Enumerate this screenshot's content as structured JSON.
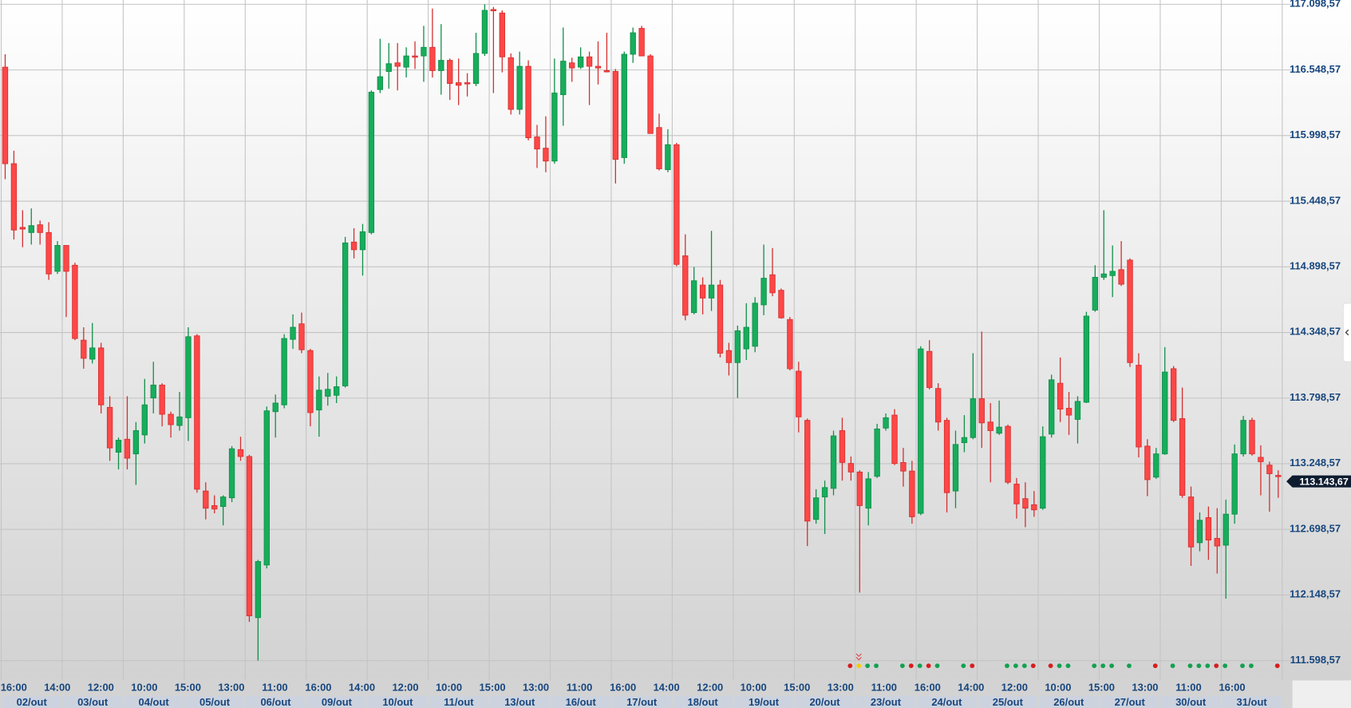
{
  "chart_data": {
    "type": "candlestick",
    "title": "",
    "ylim": [
      111598.57,
      117098.57
    ],
    "grid": true,
    "y_ticks": [
      "117.098,57",
      "116.548,57",
      "115.998,57",
      "115.448,57",
      "114.898,57",
      "114.348,57",
      "113.798,57",
      "113.248,57",
      "112.698,57",
      "112.148,57",
      "111.598,57"
    ],
    "y_tick_values": [
      117098.57,
      116548.57,
      115998.57,
      115448.57,
      114898.57,
      114348.57,
      113798.57,
      113248.57,
      112698.57,
      112148.57,
      111598.57
    ],
    "x_time_labels": [
      "16:00",
      "14:00",
      "12:00",
      "10:00",
      "15:00",
      "13:00",
      "11:00",
      "16:00",
      "14:00",
      "12:00",
      "10:00",
      "15:00",
      "13:00",
      "11:00",
      "16:00",
      "14:00",
      "12:00",
      "10:00",
      "15:00",
      "13:00",
      "11:00",
      "16:00",
      "14:00",
      "12:00",
      "10:00",
      "15:00",
      "13:00",
      "11:00",
      "16:00"
    ],
    "x_date_labels": [
      "02/out",
      "03/out",
      "04/out",
      "05/out",
      "06/out",
      "09/out",
      "10/out",
      "11/out",
      "13/out",
      "16/out",
      "17/out",
      "18/out",
      "19/out",
      "20/out",
      "23/out",
      "24/out",
      "25/out",
      "26/out",
      "27/out",
      "30/out",
      "31/out"
    ],
    "last_price": "113.143,67",
    "last_price_value": 113143.67,
    "colors": {
      "up": "#17ad5c",
      "up_border": "#0f8f48",
      "down": "#ff4747",
      "down_border": "#d42f2f",
      "axis_text": "#17467e",
      "price_tag": "#0e1c30",
      "signal_buy": "#12a150",
      "signal_sell": "#d91c1c",
      "signal_neutral": "#f2cc0c"
    },
    "candles_ohlc": [
      [
        116572,
        116680,
        115633,
        115763
      ],
      [
        115763,
        115872,
        115128,
        115207
      ],
      [
        115229,
        115373,
        115063,
        115215
      ],
      [
        115186,
        115388,
        115085,
        115244
      ],
      [
        115251,
        115287,
        115085,
        115186
      ],
      [
        115186,
        115273,
        114789,
        114839
      ],
      [
        114861,
        115114,
        114839,
        115078
      ],
      [
        115078,
        115078,
        114478,
        114861
      ],
      [
        114912,
        114933,
        114284,
        114298
      ],
      [
        114284,
        114392,
        114045,
        114132
      ],
      [
        114125,
        114428,
        114089,
        114219
      ],
      [
        114219,
        114262,
        113670,
        113742
      ],
      [
        113721,
        113814,
        113273,
        113381
      ],
      [
        113345,
        113468,
        113201,
        113446
      ],
      [
        113454,
        113814,
        113201,
        113295
      ],
      [
        113331,
        113598,
        113071,
        113526
      ],
      [
        113490,
        113959,
        113418,
        113742
      ],
      [
        113800,
        114103,
        113670,
        113908
      ],
      [
        113908,
        113923,
        113562,
        113663
      ],
      [
        113663,
        113685,
        113468,
        113576
      ],
      [
        113569,
        113850,
        113526,
        113641
      ],
      [
        113634,
        114392,
        113439,
        114313
      ],
      [
        114320,
        114334,
        113006,
        113035
      ],
      [
        113020,
        113093,
        112782,
        112876
      ],
      [
        112898,
        112984,
        112833,
        112869
      ],
      [
        112890,
        112984,
        112732,
        112970
      ],
      [
        112963,
        113396,
        112927,
        113374
      ],
      [
        113367,
        113475,
        113273,
        113309
      ],
      [
        113309,
        113324,
        111923,
        111974
      ],
      [
        111959,
        112443,
        111599,
        112429
      ],
      [
        112400,
        113728,
        112371,
        113692
      ],
      [
        113685,
        113829,
        113468,
        113757
      ],
      [
        113742,
        114334,
        113713,
        114298
      ],
      [
        114291,
        114500,
        114211,
        114392
      ],
      [
        114421,
        114515,
        114175,
        114204
      ],
      [
        114197,
        114211,
        113562,
        113677
      ],
      [
        113699,
        113980,
        113475,
        113865
      ],
      [
        113814,
        114009,
        113735,
        113872
      ],
      [
        113822,
        113980,
        113757,
        113894
      ],
      [
        113901,
        115150,
        113887,
        115099
      ],
      [
        115106,
        115222,
        114969,
        115042
      ],
      [
        115042,
        115258,
        114825,
        115193
      ],
      [
        115186,
        116377,
        115171,
        116362
      ],
      [
        116384,
        116810,
        116355,
        116492
      ],
      [
        116536,
        116774,
        116391,
        116601
      ],
      [
        116608,
        116774,
        116377,
        116579
      ],
      [
        116572,
        116738,
        116485,
        116666
      ],
      [
        116666,
        116788,
        116557,
        116658
      ],
      [
        116666,
        116918,
        116449,
        116738
      ],
      [
        116738,
        117063,
        116485,
        116543
      ],
      [
        116543,
        116933,
        116341,
        116629
      ],
      [
        116629,
        116644,
        116297,
        116435
      ],
      [
        116442,
        116644,
        116254,
        116420
      ],
      [
        116442,
        116521,
        116326,
        116435
      ],
      [
        116435,
        116860,
        116413,
        116687
      ],
      [
        116687,
        117099,
        116666,
        117048
      ],
      [
        117055,
        117077,
        116355,
        117048
      ],
      [
        117026,
        117048,
        116528,
        116658
      ],
      [
        116651,
        116687,
        116175,
        116218
      ],
      [
        116218,
        116702,
        116175,
        116579
      ],
      [
        116579,
        116629,
        115958,
        115980
      ],
      [
        115987,
        116088,
        115727,
        115886
      ],
      [
        115893,
        116160,
        115691,
        115785
      ],
      [
        115785,
        116644,
        115763,
        116355
      ],
      [
        116341,
        116904,
        116081,
        116622
      ],
      [
        116608,
        116651,
        116449,
        116565
      ],
      [
        116572,
        116738,
        116557,
        116658
      ],
      [
        116658,
        116702,
        116254,
        116579
      ],
      [
        116579,
        116788,
        116427,
        116565
      ],
      [
        116543,
        116860,
        116528,
        116536
      ],
      [
        116536,
        116557,
        115597,
        115799
      ],
      [
        115814,
        116702,
        115763,
        116680
      ],
      [
        116680,
        116904,
        116608,
        116860
      ],
      [
        116897,
        116918,
        116666,
        116666
      ],
      [
        116666,
        116680,
        116016,
        116016
      ],
      [
        116066,
        116182,
        115706,
        115720
      ],
      [
        115713,
        116052,
        115691,
        115922
      ],
      [
        115922,
        115937,
        114904,
        114919
      ],
      [
        114991,
        115171,
        114450,
        114493
      ],
      [
        114515,
        114897,
        114500,
        114782
      ],
      [
        114746,
        114811,
        114500,
        114637
      ],
      [
        114637,
        115200,
        114529,
        114746
      ],
      [
        114746,
        114789,
        114139,
        114175
      ],
      [
        114197,
        114262,
        113988,
        114096
      ],
      [
        114096,
        114406,
        113800,
        114363
      ],
      [
        114211,
        114594,
        114118,
        114392
      ],
      [
        114233,
        114645,
        114183,
        114594
      ],
      [
        114580,
        115085,
        114493,
        114803
      ],
      [
        114832,
        115056,
        114652,
        114681
      ],
      [
        114702,
        114717,
        114464,
        114471
      ],
      [
        114457,
        114478,
        114031,
        114045
      ],
      [
        114024,
        114103,
        113511,
        113641
      ],
      [
        113612,
        113627,
        112559,
        112768
      ],
      [
        112782,
        113035,
        112746,
        112963
      ],
      [
        112970,
        113107,
        112660,
        113049
      ],
      [
        113042,
        113526,
        112984,
        113482
      ],
      [
        113526,
        113634,
        113107,
        113259
      ],
      [
        113251,
        113309,
        113107,
        113179
      ],
      [
        113179,
        113194,
        112169,
        112898
      ],
      [
        112876,
        113179,
        112732,
        113122
      ],
      [
        113143,
        113583,
        113129,
        113540
      ],
      [
        113547,
        113670,
        113526,
        113634
      ],
      [
        113656,
        113706,
        113237,
        113251
      ],
      [
        113259,
        113381,
        113057,
        113187
      ],
      [
        113187,
        113273,
        112746,
        112804
      ],
      [
        112833,
        114233,
        112818,
        114211
      ],
      [
        114190,
        114284,
        113872,
        113887
      ],
      [
        113879,
        113923,
        113526,
        113598
      ],
      [
        113612,
        113634,
        112840,
        113006
      ],
      [
        113020,
        113526,
        112876,
        113410
      ],
      [
        113425,
        113656,
        113345,
        113468
      ],
      [
        113468,
        114175,
        113454,
        113793
      ],
      [
        113793,
        114356,
        113381,
        113591
      ],
      [
        113598,
        113757,
        113093,
        113526
      ],
      [
        113504,
        113778,
        113490,
        113555
      ],
      [
        113562,
        113576,
        113078,
        113093
      ],
      [
        113078,
        113129,
        112789,
        112912
      ],
      [
        112956,
        113093,
        112717,
        112876
      ],
      [
        112905,
        113020,
        112804,
        112862
      ],
      [
        112876,
        113562,
        112862,
        113475
      ],
      [
        113497,
        113995,
        113468,
        113952
      ],
      [
        113923,
        114139,
        113598,
        113706
      ],
      [
        113713,
        113850,
        113490,
        113656
      ],
      [
        113620,
        113814,
        113418,
        113771
      ],
      [
        113764,
        114522,
        113757,
        114486
      ],
      [
        114536,
        114912,
        114522,
        114811
      ],
      [
        114811,
        115373,
        114789,
        114839
      ],
      [
        114825,
        115078,
        114645,
        114861
      ],
      [
        114875,
        115114,
        114738,
        114753
      ],
      [
        114955,
        114969,
        114060,
        114096
      ],
      [
        114074,
        114175,
        113302,
        113389
      ],
      [
        113396,
        113454,
        112977,
        113115
      ],
      [
        113136,
        113381,
        113122,
        113331
      ],
      [
        113331,
        114226,
        113324,
        114017
      ],
      [
        114045,
        114067,
        113598,
        113612
      ],
      [
        113627,
        113887,
        112963,
        112984
      ],
      [
        112970,
        113057,
        112393,
        112551
      ],
      [
        112587,
        112840,
        112515,
        112775
      ],
      [
        112797,
        112890,
        112443,
        112609
      ],
      [
        112623,
        112876,
        112328,
        112559
      ],
      [
        112566,
        112948,
        112118,
        112826
      ],
      [
        112826,
        113410,
        112746,
        113331
      ],
      [
        113331,
        113649,
        113309,
        113612
      ],
      [
        113612,
        113634,
        113316,
        113331
      ],
      [
        113302,
        113403,
        112984,
        113266
      ],
      [
        113237,
        113266,
        112847,
        113165
      ],
      [
        113151,
        113194,
        112963,
        113144
      ]
    ],
    "signals": [
      {
        "candle": 97,
        "type": "sell"
      },
      {
        "candle": 98,
        "type": "neutral"
      },
      {
        "candle": 99,
        "type": "buy"
      },
      {
        "candle": 100,
        "type": "buy"
      },
      {
        "candle": 103,
        "type": "buy"
      },
      {
        "candle": 104,
        "type": "sell"
      },
      {
        "candle": 105,
        "type": "buy"
      },
      {
        "candle": 106,
        "type": "sell"
      },
      {
        "candle": 107,
        "type": "buy"
      },
      {
        "candle": 110,
        "type": "buy"
      },
      {
        "candle": 111,
        "type": "sell"
      },
      {
        "candle": 115,
        "type": "buy"
      },
      {
        "candle": 116,
        "type": "buy"
      },
      {
        "candle": 117,
        "type": "buy"
      },
      {
        "candle": 118,
        "type": "sell"
      },
      {
        "candle": 120,
        "type": "sell"
      },
      {
        "candle": 121,
        "type": "buy"
      },
      {
        "candle": 122,
        "type": "buy"
      },
      {
        "candle": 125,
        "type": "buy"
      },
      {
        "candle": 126,
        "type": "buy"
      },
      {
        "candle": 127,
        "type": "buy"
      },
      {
        "candle": 129,
        "type": "buy"
      },
      {
        "candle": 132,
        "type": "sell"
      },
      {
        "candle": 134,
        "type": "buy"
      },
      {
        "candle": 136,
        "type": "buy"
      },
      {
        "candle": 137,
        "type": "buy"
      },
      {
        "candle": 138,
        "type": "buy"
      },
      {
        "candle": 139,
        "type": "sell"
      },
      {
        "candle": 140,
        "type": "buy"
      },
      {
        "candle": 142,
        "type": "buy"
      },
      {
        "candle": 143,
        "type": "buy"
      },
      {
        "candle": 146,
        "type": "sell"
      }
    ],
    "marker_candle": 98
  },
  "side_panel": {
    "toggle_icon": "chevron-left-icon"
  }
}
